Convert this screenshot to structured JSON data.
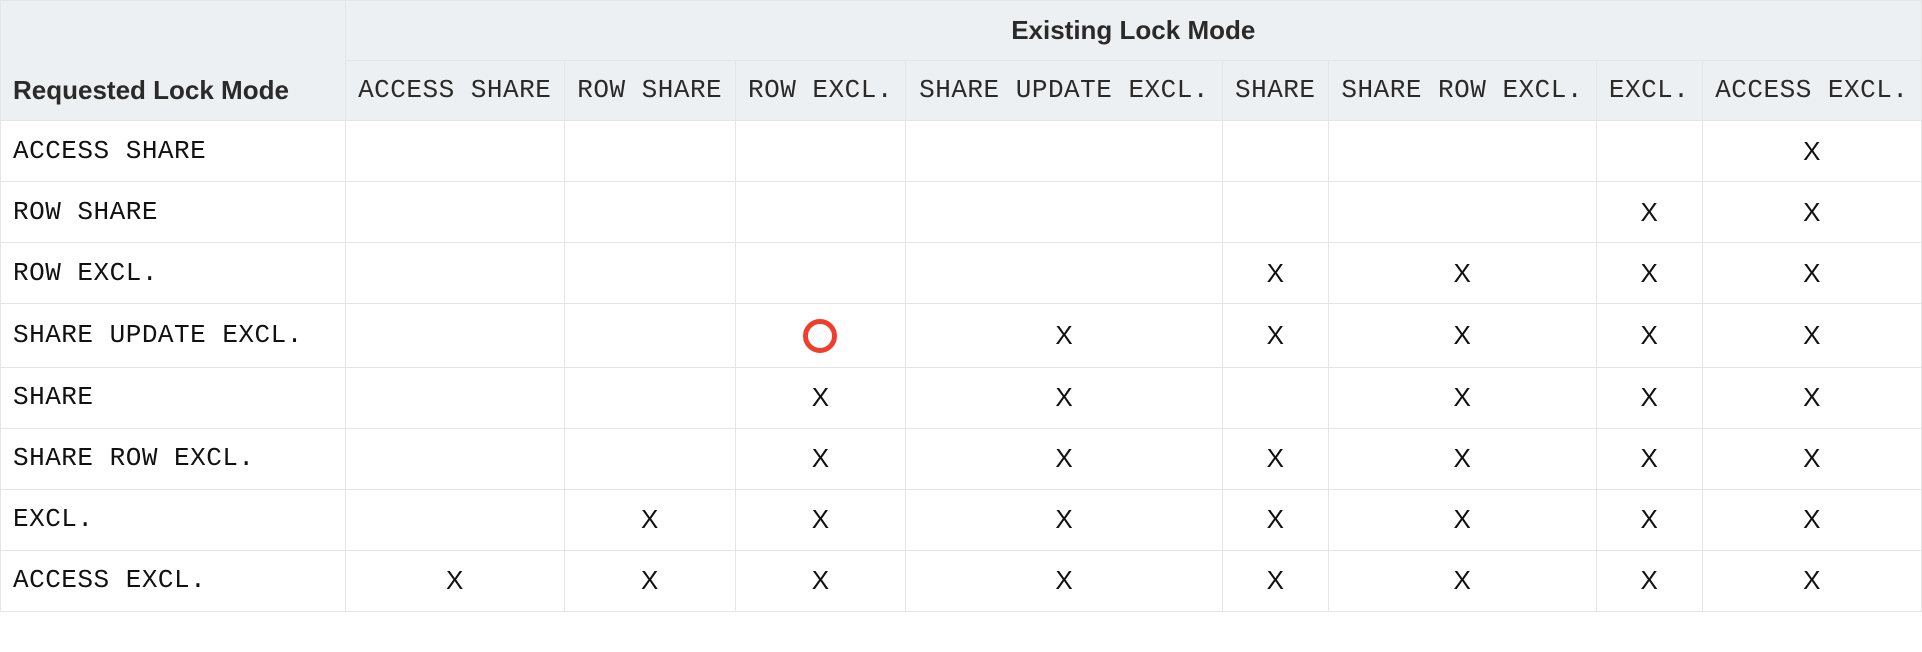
{
  "table": {
    "type": "table",
    "corner_label": "Requested Lock Mode",
    "super_header": "Existing Lock Mode",
    "columns": [
      "ACCESS SHARE",
      "ROW SHARE",
      "ROW EXCL.",
      "SHARE UPDATE EXCL.",
      "SHARE",
      "SHARE ROW EXCL.",
      "EXCL.",
      "ACCESS EXCL."
    ],
    "row_headers": [
      "ACCESS SHARE",
      "ROW SHARE",
      "ROW EXCL.",
      "SHARE UPDATE EXCL.",
      "SHARE",
      "SHARE ROW EXCL.",
      "EXCL.",
      "ACCESS EXCL."
    ],
    "mark_char": "X",
    "rows": [
      [
        "",
        "",
        "",
        "",
        "",
        "",
        "",
        "X"
      ],
      [
        "",
        "",
        "",
        "",
        "",
        "",
        "X",
        "X"
      ],
      [
        "",
        "",
        "",
        "",
        "X",
        "X",
        "X",
        "X"
      ],
      [
        "",
        "",
        "",
        "X",
        "X",
        "X",
        "X",
        "X"
      ],
      [
        "",
        "",
        "X",
        "X",
        "",
        "X",
        "X",
        "X"
      ],
      [
        "",
        "",
        "X",
        "X",
        "X",
        "X",
        "X",
        "X"
      ],
      [
        "",
        "X",
        "X",
        "X",
        "X",
        "X",
        "X",
        "X"
      ],
      [
        "X",
        "X",
        "X",
        "X",
        "X",
        "X",
        "X",
        "X"
      ]
    ],
    "annotation": {
      "type": "circle",
      "row": 3,
      "col": 2,
      "border_color": "#ef3e2c",
      "border_width": 5,
      "diameter": 34
    },
    "styling": {
      "header_bg": "#edf0f2",
      "body_bg": "#ffffff",
      "border_color": "#e5e5e5",
      "header_fontsize": 26,
      "cell_fontsize": 26,
      "header_font_family": "sans-serif",
      "mono_font_family": "monospace",
      "text_color": "#111111",
      "header_text_color": "#2a2a2a"
    }
  }
}
